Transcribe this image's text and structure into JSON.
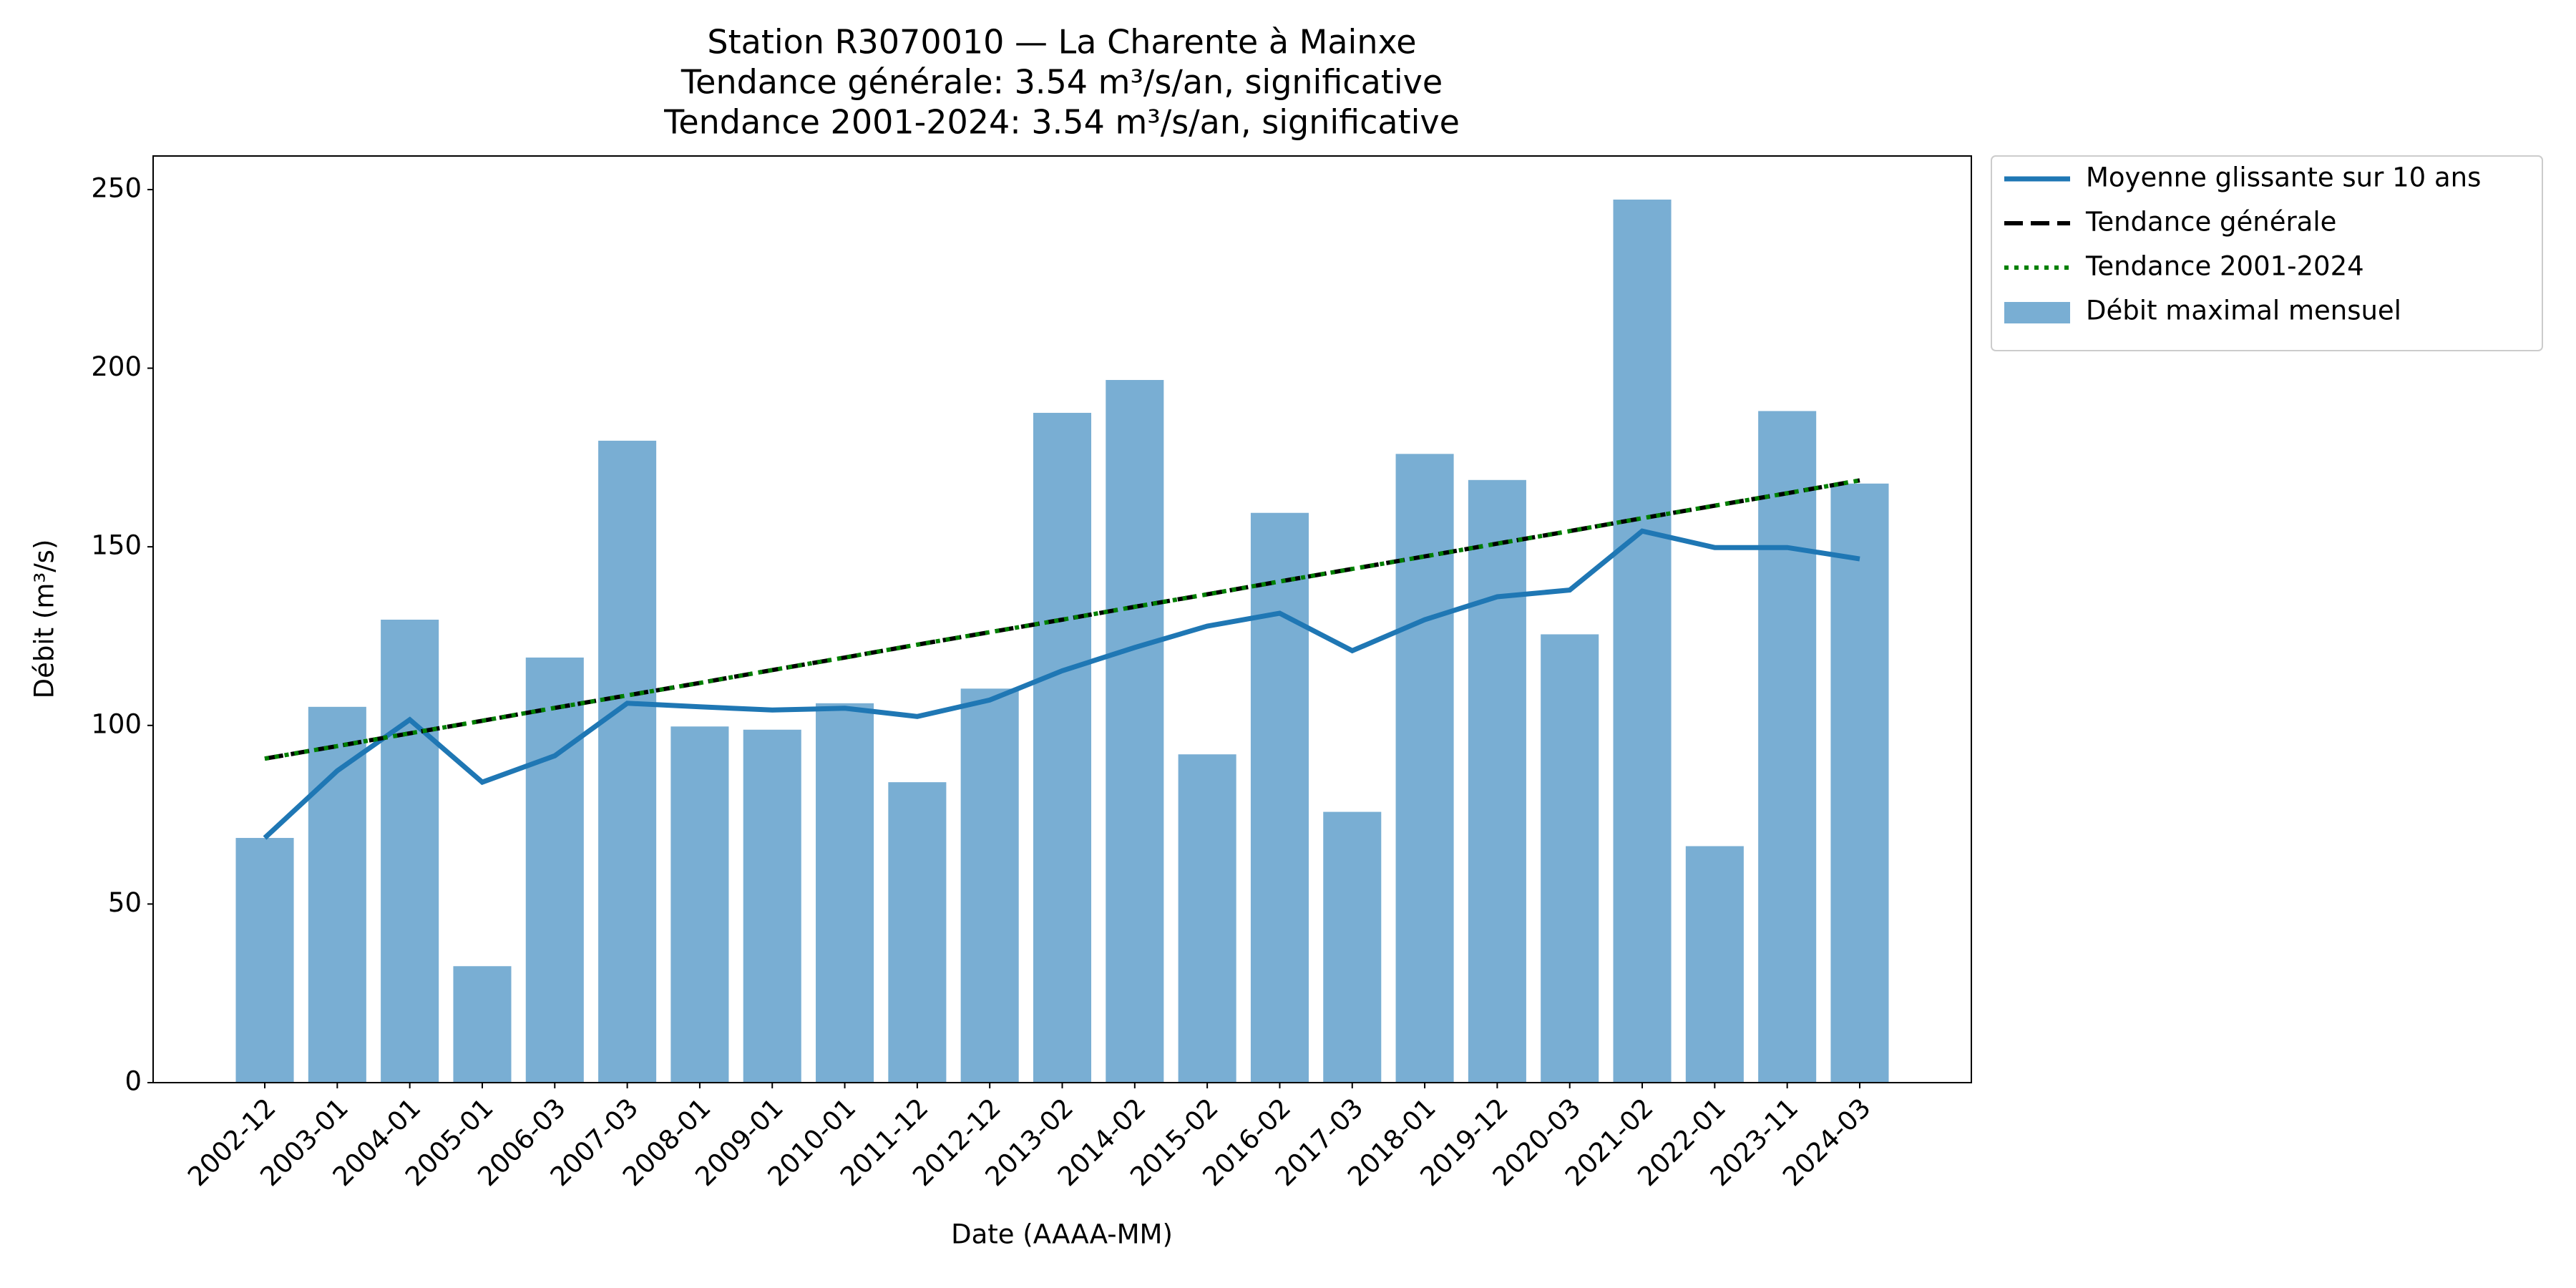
{
  "chart_data": {
    "type": "bar",
    "title": [
      "Station R3070010 — La Charente à Mainxe",
      "Tendance générale: 3.54 m³/s/an, significative",
      "Tendance 2001-2024: 3.54 m³/s/an, significative"
    ],
    "x_label": "Date (AAAA-MM)",
    "y_label": "Débit (m³/s)",
    "categories": [
      "2002-12",
      "2003-01",
      "2004-01",
      "2005-01",
      "2006-03",
      "2007-03",
      "2008-01",
      "2009-01",
      "2010-01",
      "2011-12",
      "2012-12",
      "2013-02",
      "2014-02",
      "2015-02",
      "2016-02",
      "2017-03",
      "2018-01",
      "2019-12",
      "2020-03",
      "2021-02",
      "2022-01",
      "2023-11",
      "2024-03"
    ],
    "series": [
      {
        "name": "Moyenne glissante sur 10 ans",
        "type": "line",
        "style": "solid",
        "color": "#1f77b4",
        "values": [
          68.5,
          87.3,
          101.6,
          84.1,
          91.5,
          106.2,
          105.2,
          104.3,
          104.8,
          102.5,
          107.1,
          115.3,
          121.8,
          127.8,
          131.4,
          120.9,
          129.6,
          136.0,
          137.9,
          154.4,
          149.8,
          149.8,
          146.6
        ]
      },
      {
        "name": "Tendance générale",
        "type": "line",
        "style": "dashed",
        "color": "#000000",
        "values": [
          90.7,
          94.2,
          97.8,
          101.3,
          104.9,
          108.4,
          111.9,
          115.5,
          119.0,
          122.6,
          126.1,
          129.6,
          133.2,
          136.7,
          140.3,
          143.8,
          147.3,
          150.9,
          154.4,
          158.0,
          161.5,
          165.0,
          168.6
        ]
      },
      {
        "name": "Tendance 2001-2024",
        "type": "line",
        "style": "dotted",
        "color": "#008000",
        "values": [
          90.7,
          94.2,
          97.8,
          101.3,
          104.9,
          108.4,
          111.9,
          115.5,
          119.0,
          122.6,
          126.1,
          129.6,
          133.2,
          136.7,
          140.3,
          143.8,
          147.3,
          150.9,
          154.4,
          158.0,
          161.5,
          165.0,
          168.6
        ]
      },
      {
        "name": "Débit maximal mensuel",
        "type": "bar",
        "color": "#79aed3",
        "values": [
          68.5,
          105.2,
          129.6,
          32.6,
          119.0,
          179.7,
          99.7,
          98.8,
          106.2,
          84.1,
          110.3,
          187.5,
          196.7,
          91.9,
          159.5,
          75.8,
          176.0,
          168.7,
          125.5,
          247.2,
          66.2,
          188.0,
          167.7
        ]
      }
    ],
    "ylim": [
      0,
      259.4
    ],
    "yticks": [
      0,
      50,
      100,
      150,
      200,
      250
    ],
    "legend": "outside upper right"
  }
}
